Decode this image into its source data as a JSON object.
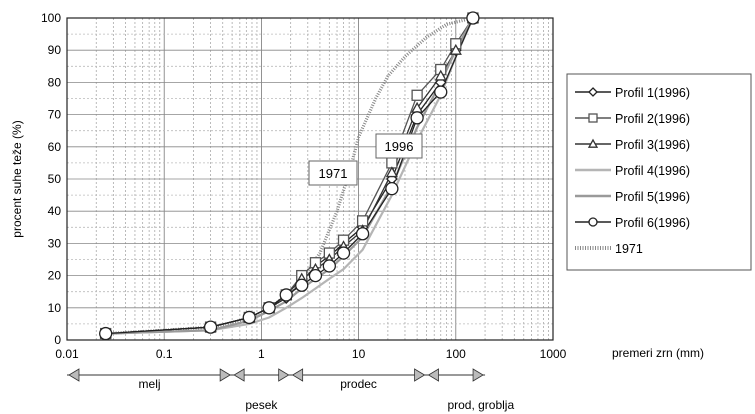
{
  "chart_data": {
    "type": "line",
    "ylabel": "procent suhe teže (%)",
    "xlabel": "premeri zrn (mm)",
    "x_scale": "log",
    "xlim": [
      0.01,
      1000
    ],
    "ylim": [
      0,
      100
    ],
    "grid": true,
    "legend_position": "right",
    "x_ticks": [
      "0.01",
      "0.1",
      "1",
      "10",
      "100",
      "1000"
    ],
    "y_ticks": [
      "0",
      "10",
      "20",
      "30",
      "40",
      "50",
      "60",
      "70",
      "80",
      "90",
      "100"
    ],
    "annotations": [
      "1971",
      "1996"
    ],
    "series": [
      {
        "name": "Profil 1(1996)",
        "marker": "diamond",
        "color": "#222222",
        "points": [
          [
            0.025,
            2
          ],
          [
            0.3,
            4
          ],
          [
            0.75,
            7
          ],
          [
            1.2,
            10
          ],
          [
            1.8,
            13
          ],
          [
            2.6,
            18
          ],
          [
            3.6,
            23
          ],
          [
            5,
            26
          ],
          [
            7,
            30
          ],
          [
            11,
            35
          ],
          [
            22,
            50
          ],
          [
            40,
            70
          ],
          [
            70,
            80
          ],
          [
            100,
            90
          ],
          [
            150,
            100
          ]
        ]
      },
      {
        "name": "Profil 2(1996)",
        "marker": "square",
        "color": "#555555",
        "points": [
          [
            0.025,
            2
          ],
          [
            0.3,
            4
          ],
          [
            0.75,
            7
          ],
          [
            1.2,
            10
          ],
          [
            1.8,
            14
          ],
          [
            2.6,
            20
          ],
          [
            3.6,
            24
          ],
          [
            5,
            27
          ],
          [
            7,
            31
          ],
          [
            11,
            37
          ],
          [
            22,
            55
          ],
          [
            40,
            76
          ],
          [
            70,
            84
          ],
          [
            100,
            92
          ],
          [
            150,
            100
          ]
        ]
      },
      {
        "name": "Profil 3(1996)",
        "marker": "triangle",
        "color": "#333333",
        "points": [
          [
            0.025,
            2
          ],
          [
            0.3,
            4
          ],
          [
            0.75,
            7
          ],
          [
            1.2,
            10
          ],
          [
            1.8,
            14
          ],
          [
            2.6,
            19
          ],
          [
            3.6,
            22
          ],
          [
            5,
            25
          ],
          [
            7,
            29
          ],
          [
            11,
            34
          ],
          [
            22,
            52
          ],
          [
            40,
            72
          ],
          [
            70,
            82
          ],
          [
            100,
            90
          ],
          [
            150,
            100
          ]
        ]
      },
      {
        "name": "Profil 4(1996)",
        "marker": "none",
        "color": "#b5b5b5",
        "points": [
          [
            0.025,
            2
          ],
          [
            0.3,
            3
          ],
          [
            0.75,
            5
          ],
          [
            1.2,
            7
          ],
          [
            1.8,
            10
          ],
          [
            2.6,
            13
          ],
          [
            3.6,
            16
          ],
          [
            5,
            19
          ],
          [
            7,
            22
          ],
          [
            11,
            28
          ],
          [
            22,
            45
          ],
          [
            40,
            62
          ],
          [
            70,
            76
          ],
          [
            100,
            88
          ],
          [
            150,
            100
          ]
        ]
      },
      {
        "name": "Profil 5(1996)",
        "marker": "none",
        "color": "#9a9a9a",
        "points": [
          [
            0.025,
            2
          ],
          [
            0.3,
            3
          ],
          [
            0.75,
            6
          ],
          [
            1.2,
            9
          ],
          [
            1.8,
            12
          ],
          [
            2.6,
            16
          ],
          [
            3.6,
            19
          ],
          [
            5,
            22
          ],
          [
            7,
            26
          ],
          [
            11,
            32
          ],
          [
            22,
            48
          ],
          [
            40,
            66
          ],
          [
            70,
            80
          ],
          [
            100,
            90
          ],
          [
            150,
            100
          ]
        ]
      },
      {
        "name": "Profil 6(1996)",
        "marker": "circle",
        "color": "#222222",
        "points": [
          [
            0.025,
            2
          ],
          [
            0.3,
            4
          ],
          [
            0.75,
            7
          ],
          [
            1.2,
            10
          ],
          [
            1.8,
            14
          ],
          [
            2.6,
            17
          ],
          [
            3.6,
            20
          ],
          [
            5,
            23
          ],
          [
            7,
            27
          ],
          [
            11,
            33
          ],
          [
            22,
            47
          ],
          [
            40,
            69
          ],
          [
            70,
            77
          ],
          [
            150,
            100
          ]
        ]
      },
      {
        "name": "1971",
        "marker": "none",
        "color": "#888888",
        "thick": true,
        "points": [
          [
            0.025,
            2
          ],
          [
            0.1,
            3
          ],
          [
            0.3,
            4
          ],
          [
            0.7,
            6
          ],
          [
            1,
            8
          ],
          [
            1.5,
            12
          ],
          [
            2.5,
            18
          ],
          [
            4,
            27
          ],
          [
            6,
            40
          ],
          [
            8,
            52
          ],
          [
            10,
            63
          ],
          [
            15,
            75
          ],
          [
            20,
            82
          ],
          [
            30,
            88
          ],
          [
            50,
            94
          ],
          [
            80,
            98
          ],
          [
            150,
            100
          ]
        ]
      }
    ],
    "size_classes": [
      {
        "label": "melj",
        "from": 0.01,
        "to": 0.5
      },
      {
        "label": "pesek",
        "from": 0.5,
        "to": 2
      },
      {
        "label": "prodec",
        "from": 2,
        "to": 50
      },
      {
        "label": "prod, groblja",
        "from": 50,
        "to": 200
      }
    ]
  }
}
